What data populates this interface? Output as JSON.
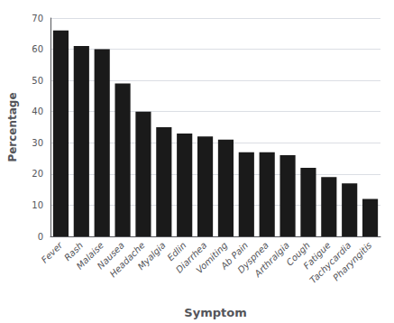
{
  "chart_data": {
    "type": "bar",
    "xlabel": "Symptom",
    "ylabel": "Percentage",
    "categories": [
      "Fever",
      "Rash",
      "Malaise",
      "Nausea",
      "Headache",
      "Myalgia",
      "Edlin",
      "Diarrhea",
      "Vomiting",
      "Ab Pain",
      "Dyspnea",
      "Arthralgia",
      "Cough",
      "Fatigue",
      "Tachycardia",
      "Pharyngitis"
    ],
    "values": [
      66,
      61,
      60,
      49,
      40,
      35,
      33,
      32,
      31,
      27,
      27,
      26,
      22,
      19,
      17,
      12
    ],
    "color": "#1a1a1a",
    "ylim": [
      0,
      70
    ],
    "yticks": [
      0,
      10,
      20,
      30,
      40,
      50,
      60,
      70
    ],
    "grid": true
  }
}
